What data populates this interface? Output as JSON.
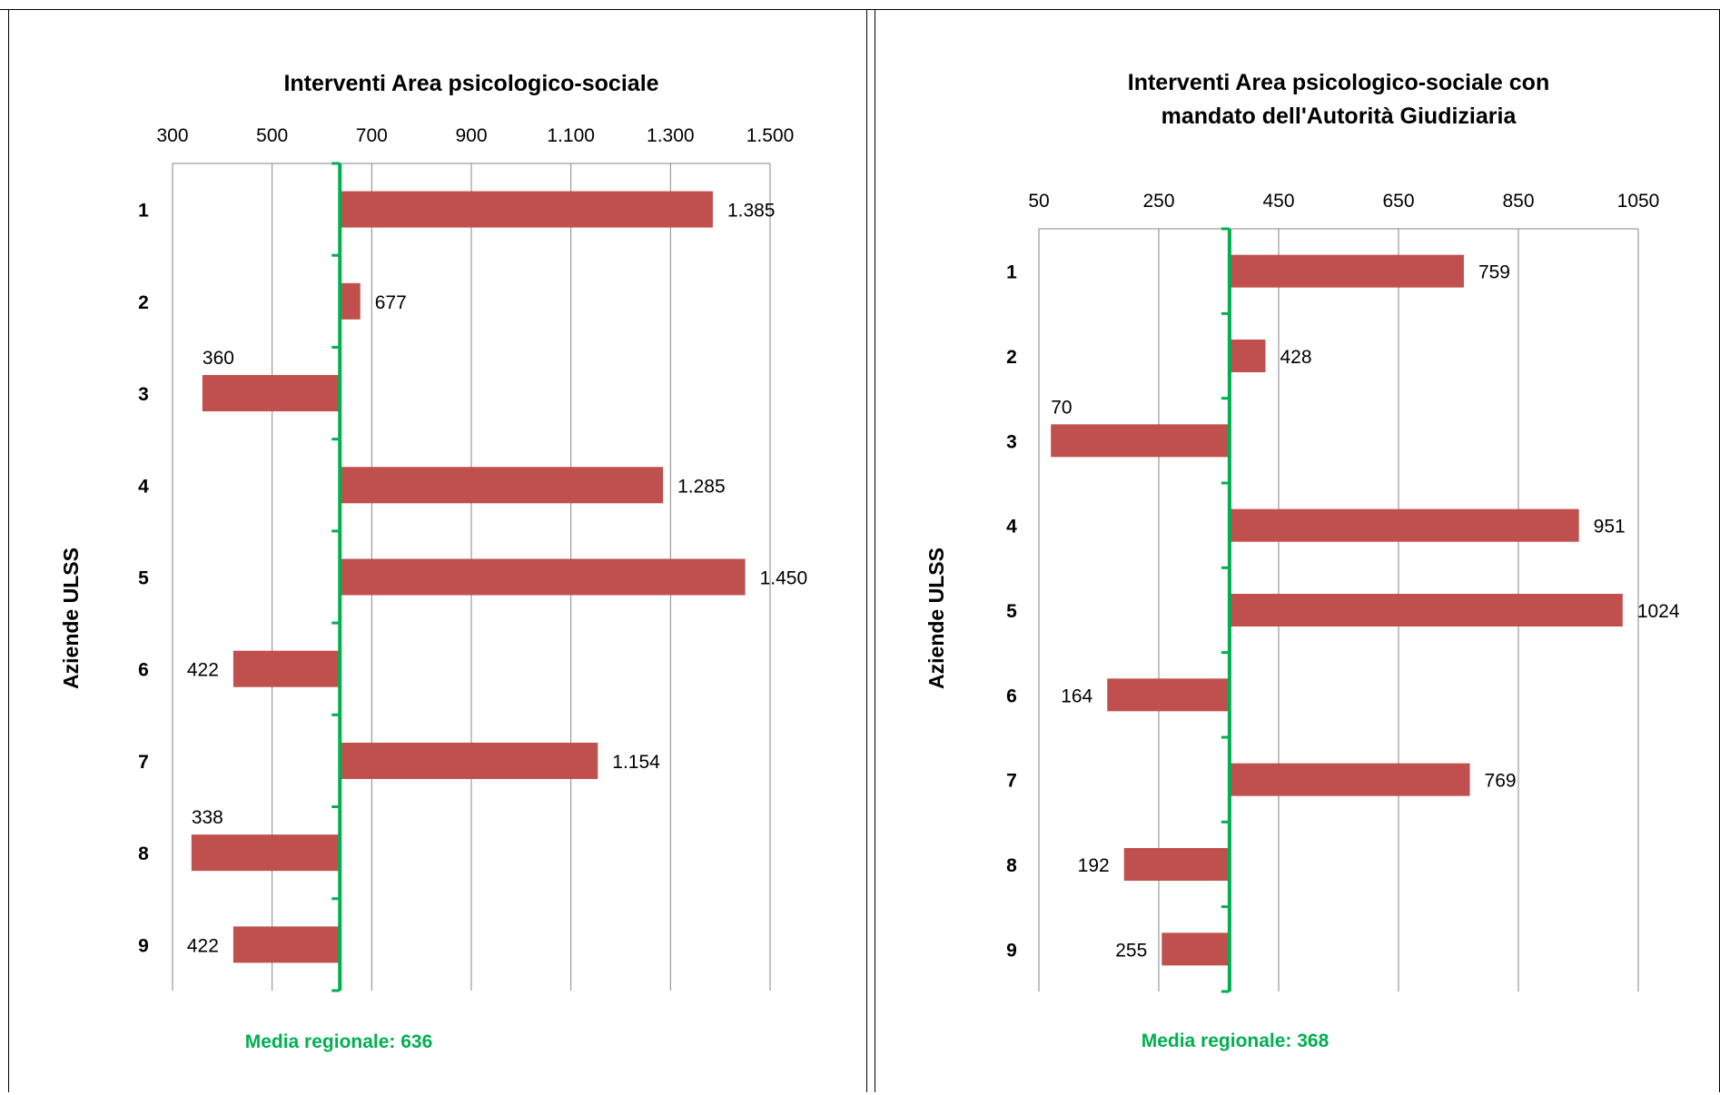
{
  "page": {
    "top_caption": ""
  },
  "colors": {
    "bar": "#c0504d",
    "mean_line": "#00b050",
    "gridline": "#868686",
    "mean_label": "#00b050"
  },
  "chart_data": [
    {
      "type": "bar",
      "orientation": "horizontal",
      "title": "Interventi Area psicologico-sociale",
      "ylabel": "Aziende ULSS",
      "categories": [
        "1",
        "2",
        "3",
        "4",
        "5",
        "6",
        "7",
        "8",
        "9"
      ],
      "values": [
        1385,
        677,
        360,
        1285,
        1450,
        422,
        1154,
        338,
        422
      ],
      "value_labels": [
        "1.385",
        "677",
        "360",
        "1.285",
        "1.450",
        "422",
        "1.154",
        "338",
        "422"
      ],
      "baseline": 636,
      "xlim": [
        300,
        1500
      ],
      "x_ticks": [
        300,
        500,
        700,
        900,
        1100,
        1300,
        1500
      ],
      "x_tick_labels": [
        "300",
        "500",
        "700",
        "900",
        "1.100",
        "1.300",
        "1.500"
      ],
      "x_axis_position": "top",
      "grid": true,
      "mean_label": "Media regionale: 636"
    },
    {
      "type": "bar",
      "orientation": "horizontal",
      "title": "Interventi Area psicologico-sociale con mandato dell'Autorità Giudiziaria",
      "title_lines": [
        "Interventi Area psicologico-sociale con",
        "mandato dell'Autorità Giudiziaria"
      ],
      "ylabel": "Aziende ULSS",
      "categories": [
        "1",
        "2",
        "3",
        "4",
        "5",
        "6",
        "7",
        "8",
        "9"
      ],
      "values": [
        759,
        428,
        70,
        951,
        1024,
        164,
        769,
        192,
        255
      ],
      "value_labels": [
        "759",
        "428",
        "70",
        "951",
        "1024",
        "164",
        "769",
        "192",
        "255"
      ],
      "baseline": 368,
      "xlim": [
        50,
        1050
      ],
      "x_ticks": [
        50,
        250,
        450,
        650,
        850,
        1050
      ],
      "x_tick_labels": [
        "50",
        "250",
        "450",
        "650",
        "850",
        "1050"
      ],
      "x_axis_position": "top",
      "grid": true,
      "mean_label": "Media regionale: 368"
    }
  ]
}
